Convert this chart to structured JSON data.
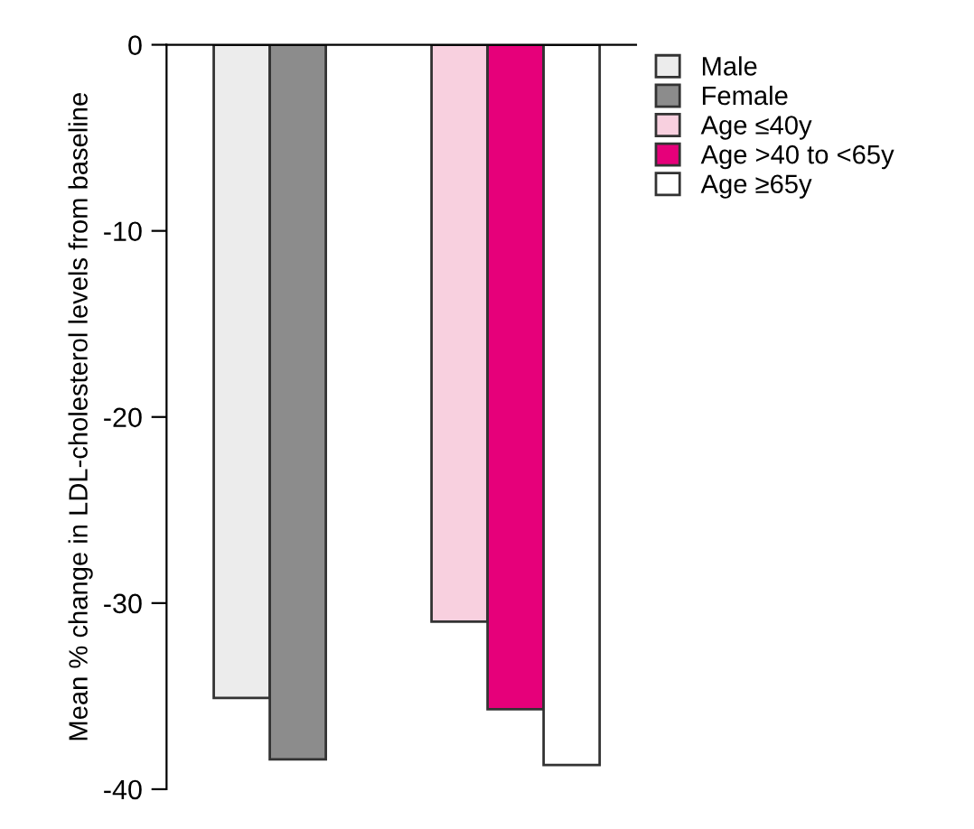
{
  "chart_data": {
    "type": "bar",
    "ylabel": "Mean % change in LDL-cholesterol levels from baseline",
    "categories": [
      null,
      null
    ],
    "series": [
      {
        "name": "Male",
        "color": "#ececec",
        "values": [
          -35.1,
          null
        ]
      },
      {
        "name": "Female",
        "color": "#8c8c8c",
        "values": [
          -38.4,
          null
        ]
      },
      {
        "name": "Age ≤40y",
        "color": "#f8d0df",
        "values": [
          null,
          -31.0
        ]
      },
      {
        "name": "Age >40 to <65y",
        "color": "#e6007a",
        "values": [
          null,
          -35.7
        ]
      },
      {
        "name": "Age ≥65y",
        "color": "#ffffff",
        "values": [
          null,
          -38.7
        ]
      }
    ],
    "ylim": [
      -40,
      0
    ],
    "yticks": [
      0,
      -10,
      -20,
      -30,
      -40
    ],
    "tick_labels": "y",
    "grid": false,
    "legend": "top right"
  }
}
